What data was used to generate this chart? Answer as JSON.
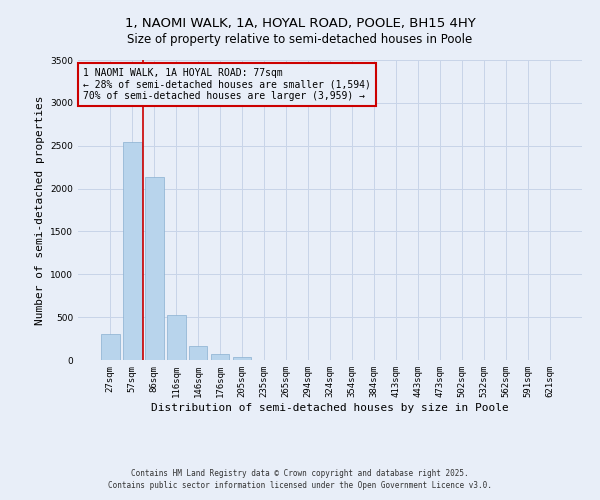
{
  "title_line1": "1, NAOMI WALK, 1A, HOYAL ROAD, POOLE, BH15 4HY",
  "title_line2": "Size of property relative to semi-detached houses in Poole",
  "xlabel": "Distribution of semi-detached houses by size in Poole",
  "ylabel": "Number of semi-detached properties",
  "bar_labels": [
    "27sqm",
    "57sqm",
    "86sqm",
    "116sqm",
    "146sqm",
    "176sqm",
    "205sqm",
    "235sqm",
    "265sqm",
    "294sqm",
    "324sqm",
    "354sqm",
    "384sqm",
    "413sqm",
    "443sqm",
    "473sqm",
    "502sqm",
    "532sqm",
    "562sqm",
    "591sqm",
    "621sqm"
  ],
  "bar_heights": [
    300,
    2540,
    2130,
    530,
    160,
    75,
    30,
    5,
    0,
    0,
    0,
    0,
    0,
    0,
    0,
    0,
    0,
    0,
    0,
    0,
    0
  ],
  "bar_color": "#b8d4ec",
  "bar_edgecolor": "#8ab0d0",
  "bar_linewidth": 0.5,
  "grid_color": "#c8d4e8",
  "background_color": "#e8eef8",
  "vline_color": "#cc0000",
  "vline_linewidth": 1.2,
  "annotation_text": "1 NAOMI WALK, 1A HOYAL ROAD: 77sqm\n← 28% of semi-detached houses are smaller (1,594)\n70% of semi-detached houses are larger (3,959) →",
  "annotation_box_edgecolor": "#cc0000",
  "annotation_fontsize": 7,
  "ylim": [
    0,
    3500
  ],
  "yticks": [
    0,
    500,
    1000,
    1500,
    2000,
    2500,
    3000,
    3500
  ],
  "footer_line1": "Contains HM Land Registry data © Crown copyright and database right 2025.",
  "footer_line2": "Contains public sector information licensed under the Open Government Licence v3.0.",
  "title_fontsize": 9.5,
  "subtitle_fontsize": 8.5,
  "axis_label_fontsize": 8,
  "tick_fontsize": 6.5,
  "footer_fontsize": 5.5
}
